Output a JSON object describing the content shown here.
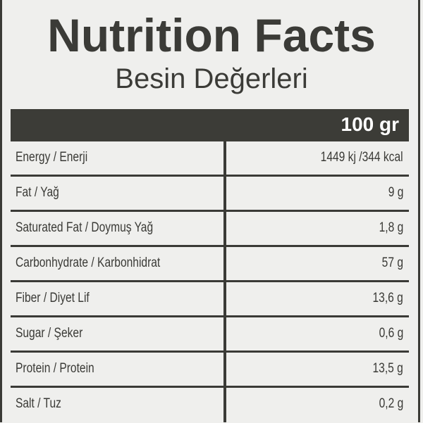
{
  "title": "Nutrition Facts",
  "subtitle": "Besin Değerleri",
  "serving": "100 gr",
  "rows": [
    {
      "label": "Energy / Enerji",
      "value": "1449 kj /344 kcal"
    },
    {
      "label": "Fat / Yağ",
      "value": "9 g"
    },
    {
      "label": "Saturated Fat / Doymuş Yağ",
      "value": "1,8 g"
    },
    {
      "label": "Carbonhydrate / Karbonhidrat",
      "value": "57 g"
    },
    {
      "label": "Fiber / Diyet Lif",
      "value": "13,6 g"
    },
    {
      "label": "Sugar / Şeker",
      "value": "0,6 g"
    },
    {
      "label": "Protein / Protein",
      "value": "13,5 g"
    },
    {
      "label": "Salt / Tuz",
      "value": "0,2 g"
    }
  ],
  "colors": {
    "dark": "#3c3c37",
    "background": "#efefed"
  }
}
